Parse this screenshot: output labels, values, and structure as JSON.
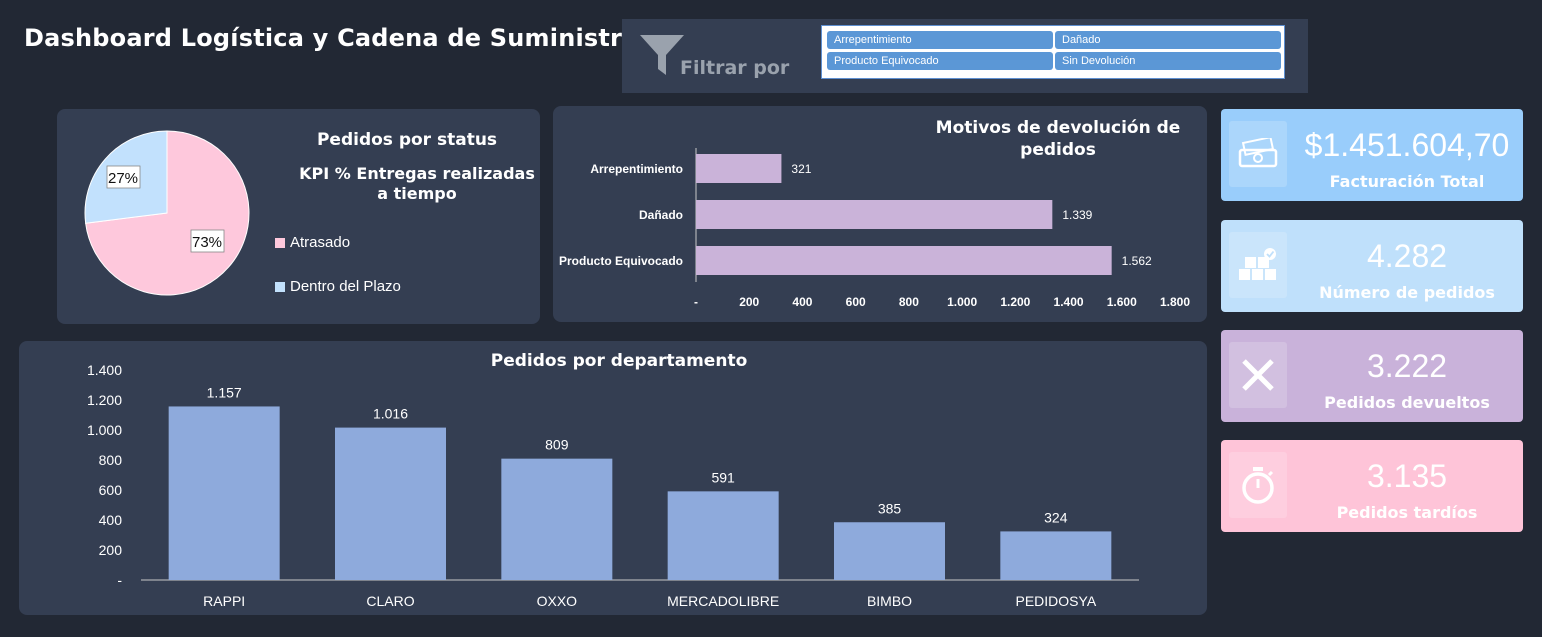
{
  "header": {
    "title": "Dashboard Logística y Cadena de Suministro"
  },
  "filter": {
    "label": "Filtrar por",
    "options": [
      "Arrepentimiento",
      "Dañado",
      "Producto Equivocado",
      "Sin Devolución"
    ]
  },
  "status_card": {
    "title": "Pedidos por status",
    "subtitle_line1": "KPI % Entregas realizadas",
    "subtitle_line2": "a tiempo",
    "legend": [
      "Atrasado",
      "Dentro del Plazo"
    ]
  },
  "returns_card": {
    "title_line1": "Motivos de devolución de",
    "title_line2": "pedidos"
  },
  "department_card": {
    "title": "Pedidos por departamento"
  },
  "kpis": [
    {
      "value": "$1.451.604,70",
      "label": "Facturación Total",
      "icon": "money-icon",
      "color": "#99cdfb"
    },
    {
      "value": "4.282",
      "label": "Número de pedidos",
      "icon": "boxes-icon",
      "color": "#bfe0fb"
    },
    {
      "value": "3.222",
      "label": "Pedidos devueltos",
      "icon": "close-icon",
      "color": "#c9b2da"
    },
    {
      "value": "3.135",
      "label": "Pedidos tardíos",
      "icon": "stopwatch-icon",
      "color": "#fec4d8"
    }
  ],
  "colors": {
    "background": "#222834",
    "panel": "#343e52",
    "pink": "#fec8dc",
    "blue": "#c2e1fd",
    "lavender": "#cab3d9",
    "bar_blue": "#8eaadc"
  },
  "chart_data": [
    {
      "type": "pie",
      "title": "Pedidos por status",
      "categories": [
        "Atrasado",
        "Dentro del Plazo"
      ],
      "values": [
        73,
        27
      ],
      "labels": [
        "73%",
        "27%"
      ],
      "legend": "right"
    },
    {
      "type": "bar",
      "orientation": "horizontal",
      "title": "Motivos de devolución de pedidos",
      "categories": [
        "Arrepentimiento",
        "Dañado",
        "Producto Equivocado"
      ],
      "values": [
        321,
        1339,
        1562
      ],
      "value_labels": [
        "321",
        "1.339",
        "1.562"
      ],
      "xlim": [
        0,
        1800
      ],
      "xticks": [
        "-",
        "200",
        "400",
        "600",
        "800",
        "1.000",
        "1.200",
        "1.400",
        "1.600",
        "1.800"
      ]
    },
    {
      "type": "bar",
      "title": "Pedidos por departamento",
      "categories": [
        "RAPPI",
        "CLARO",
        "OXXO",
        "MERCADOLIBRE",
        "BIMBO",
        "PEDIDOSYA"
      ],
      "values": [
        1157,
        1016,
        809,
        591,
        385,
        324
      ],
      "value_labels": [
        "1.157",
        "1.016",
        "809",
        "591",
        "385",
        "324"
      ],
      "ylim": [
        0,
        1400
      ],
      "yticks": [
        "-",
        "200",
        "400",
        "600",
        "800",
        "1.000",
        "1.200",
        "1.400"
      ]
    }
  ]
}
